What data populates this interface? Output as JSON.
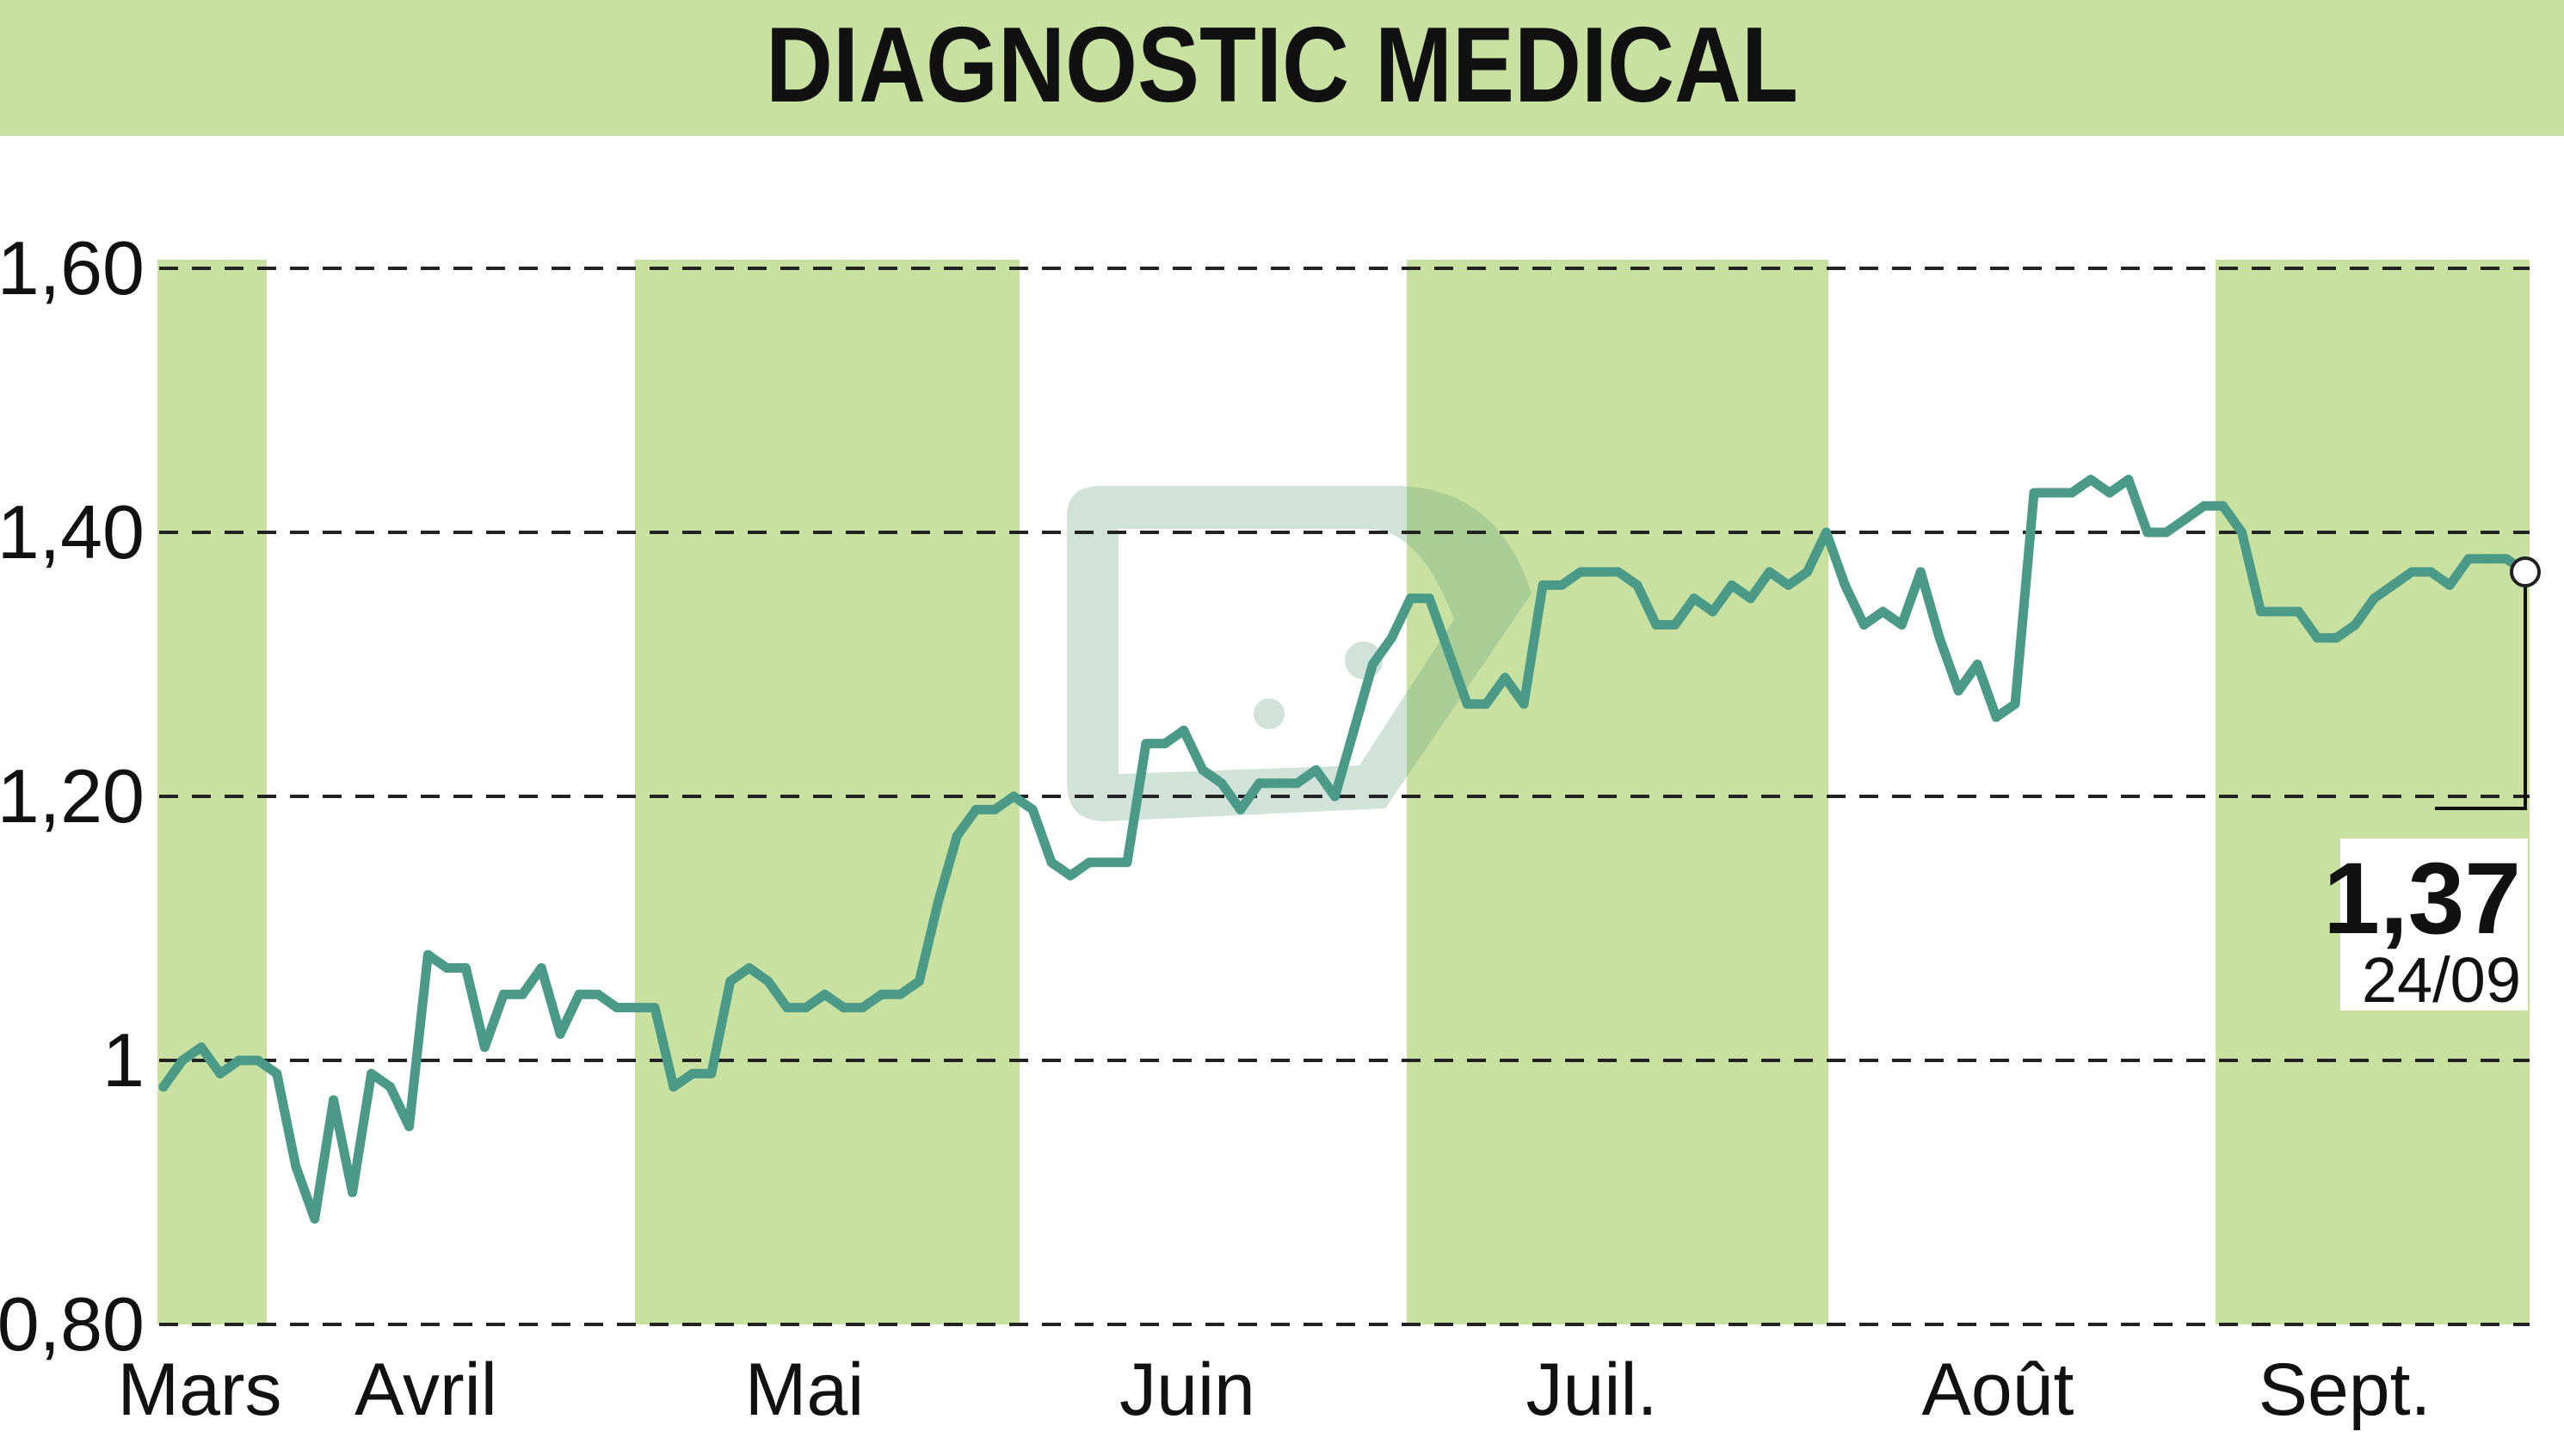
{
  "title": "DIAGNOSTIC MEDICAL",
  "colors": {
    "band": "#c8e1a0",
    "line": "#4a9a87",
    "grid": "#222222",
    "text": "#111111",
    "watermark": "#5a9a78"
  },
  "last_value": {
    "value": "1,37",
    "date": "24/09"
  },
  "chart_data": {
    "type": "area",
    "title": "DIAGNOSTIC MEDICAL",
    "xlabel": "",
    "ylabel": "",
    "ylim": [
      0.8,
      1.6
    ],
    "y_ticks": [
      {
        "value": 1.6,
        "label": "1,60"
      },
      {
        "value": 1.4,
        "label": "1,40"
      },
      {
        "value": 1.2,
        "label": "1,20"
      },
      {
        "value": 1.0,
        "label": "1"
      },
      {
        "value": 0.8,
        "label": "0,80"
      }
    ],
    "grid": true,
    "months": [
      "Mars",
      "Avril",
      "Mai",
      "Juin",
      "Juil.",
      "Août",
      "Sept."
    ],
    "shaded_months": [
      "Mars",
      "Mai",
      "Juil.",
      "Sept."
    ],
    "series": [
      {
        "values": [
          0.98,
          1.0,
          1.01,
          0.99,
          1.0,
          1.0,
          0.99,
          0.92,
          0.88,
          0.97,
          0.9,
          0.99,
          0.98,
          0.95,
          1.08,
          1.07,
          1.07,
          1.01,
          1.05,
          1.05,
          1.07,
          1.02,
          1.05,
          1.05,
          1.04,
          1.04,
          1.04,
          0.98,
          0.99,
          0.99,
          1.06,
          1.07,
          1.06,
          1.04,
          1.04,
          1.05,
          1.04,
          1.04,
          1.05,
          1.05,
          1.06,
          1.12,
          1.17,
          1.19,
          1.19,
          1.2,
          1.19,
          1.15,
          1.14,
          1.15,
          1.15,
          1.15,
          1.24,
          1.24,
          1.25,
          1.22,
          1.21,
          1.19,
          1.21,
          1.21,
          1.21,
          1.22,
          1.2,
          1.25,
          1.3,
          1.32,
          1.35,
          1.35,
          1.31,
          1.27,
          1.27,
          1.29,
          1.27,
          1.36,
          1.36,
          1.37,
          1.37,
          1.37,
          1.36,
          1.33,
          1.33,
          1.35,
          1.34,
          1.36,
          1.35,
          1.37,
          1.36,
          1.37,
          1.4,
          1.36,
          1.33,
          1.34,
          1.33,
          1.37,
          1.32,
          1.28,
          1.3,
          1.26,
          1.27,
          1.43,
          1.43,
          1.43,
          1.44,
          1.43,
          1.44,
          1.4,
          1.4,
          1.41,
          1.42,
          1.42,
          1.4,
          1.34,
          1.34,
          1.34,
          1.32,
          1.32,
          1.33,
          1.35,
          1.36,
          1.37,
          1.37,
          1.36,
          1.38,
          1.38,
          1.38,
          1.37
        ]
      }
    ]
  }
}
